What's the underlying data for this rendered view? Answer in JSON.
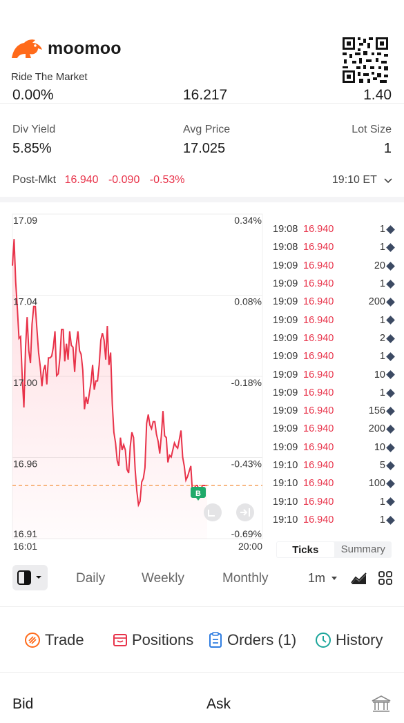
{
  "brand": {
    "name": "moomoo",
    "tagline": "Ride The Market"
  },
  "cut_row": {
    "left": "0.00%",
    "mid": "16.217",
    "right": "1.40"
  },
  "stats": [
    {
      "label": "Div Yield",
      "value": "5.85%"
    },
    {
      "label": "Avg Price",
      "value": "17.025"
    },
    {
      "label": "Lot Size",
      "value": "1"
    }
  ],
  "post_market": {
    "label": "Post-Mkt",
    "price": "16.940",
    "change": "-0.090",
    "change_pct": "-0.53%",
    "time": "19:10 ET"
  },
  "chart_data": {
    "type": "line",
    "y_ticks_left": [
      "17.09",
      "17.04",
      "17.00",
      "16.96",
      "16.91"
    ],
    "y_ticks_right": [
      "0.34%",
      "0.08%",
      "-0.18%",
      "-0.43%",
      "-0.69%"
    ],
    "x_ticks": [
      "16:01",
      "20:00"
    ],
    "ylim": [
      16.91,
      17.09
    ],
    "reference_price": 16.94,
    "marker_label": "B",
    "series": [
      {
        "values": [
          17.064,
          17.079,
          17.055,
          17.04,
          17.023,
          17.024,
          17.001,
          16.984,
          17.018,
          17.035,
          17.016,
          17.009,
          17.031,
          17.041,
          17.041,
          17.028,
          17.015,
          17.007,
          16.996,
          17.005,
          17.008,
          16.997,
          17.012,
          17.012,
          17.013,
          17.018,
          17.027,
          17.002,
          17.003,
          17.012,
          17.028,
          17.028,
          17.01,
          17.02,
          17.011,
          17.027,
          17.019,
          17.018,
          17.004,
          17.019,
          17.027,
          17.016,
          17.014,
          17.005,
          16.983,
          16.99,
          16.986,
          16.992,
          16.998,
          17.008,
          16.994,
          16.999,
          16.999,
          17.008,
          17.022,
          17.026,
          17.022,
          17.011,
          17.03,
          17.008,
          17.015,
          16.986,
          16.97,
          16.964,
          16.954,
          16.951,
          16.967,
          16.96,
          16.963,
          16.96,
          16.949,
          16.947,
          16.962,
          16.97,
          16.967,
          16.949,
          16.937,
          16.929,
          16.931,
          16.942,
          16.944,
          16.95,
          16.975,
          16.98,
          16.974,
          16.972,
          16.976,
          16.976,
          16.969,
          16.965,
          16.958,
          16.968,
          16.982,
          16.968,
          16.967,
          16.953,
          16.957,
          16.956,
          16.96,
          16.964,
          16.962,
          16.961,
          16.966,
          16.971,
          16.956,
          16.951,
          16.943,
          16.945,
          16.948,
          16.951,
          16.936,
          16.938,
          16.94,
          16.94,
          16.937,
          16.936,
          16.94,
          16.94,
          16.94,
          16.94
        ]
      }
    ]
  },
  "ticks": [
    {
      "time": "19:08",
      "price": "16.940",
      "vol": "1"
    },
    {
      "time": "19:08",
      "price": "16.940",
      "vol": "1"
    },
    {
      "time": "19:09",
      "price": "16.940",
      "vol": "20"
    },
    {
      "time": "19:09",
      "price": "16.940",
      "vol": "1"
    },
    {
      "time": "19:09",
      "price": "16.940",
      "vol": "200"
    },
    {
      "time": "19:09",
      "price": "16.940",
      "vol": "1"
    },
    {
      "time": "19:09",
      "price": "16.940",
      "vol": "2"
    },
    {
      "time": "19:09",
      "price": "16.940",
      "vol": "1"
    },
    {
      "time": "19:09",
      "price": "16.940",
      "vol": "10"
    },
    {
      "time": "19:09",
      "price": "16.940",
      "vol": "1"
    },
    {
      "time": "19:09",
      "price": "16.940",
      "vol": "156"
    },
    {
      "time": "19:09",
      "price": "16.940",
      "vol": "200"
    },
    {
      "time": "19:09",
      "price": "16.940",
      "vol": "10"
    },
    {
      "time": "19:10",
      "price": "16.940",
      "vol": "5"
    },
    {
      "time": "19:10",
      "price": "16.940",
      "vol": "100"
    },
    {
      "time": "19:10",
      "price": "16.940",
      "vol": "1"
    },
    {
      "time": "19:10",
      "price": "16.940",
      "vol": "1"
    }
  ],
  "tick_tabs": {
    "ticks": "Ticks",
    "summary": "Summary"
  },
  "periods": {
    "daily": "Daily",
    "weekly": "Weekly",
    "monthly": "Monthly",
    "interval": "1m"
  },
  "actions": {
    "trade": "Trade",
    "positions": "Positions",
    "orders": "Orders (1)",
    "history": "History"
  },
  "orderbook": {
    "bid": "Bid",
    "ask": "Ask"
  },
  "colors": {
    "brand_orange": "#ff6a1a",
    "down_red": "#e8334a",
    "trade_orange": "#ff6a1a",
    "orders_blue": "#2f7de1",
    "history_teal": "#1aa59a"
  }
}
